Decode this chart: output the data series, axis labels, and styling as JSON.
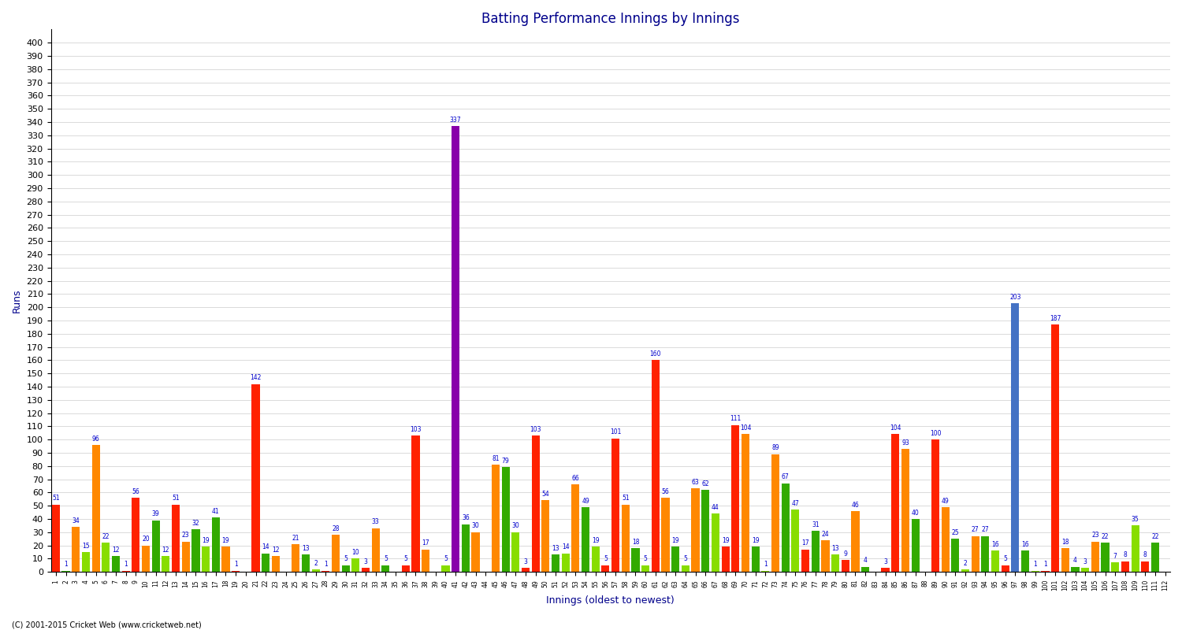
{
  "title": "Batting Performance Innings by Innings",
  "xlabel": "Innings (oldest to newest)",
  "ylabel": "Runs",
  "footer": "(C) 2001-2015 Cricket Web (www.cricketweb.net)",
  "ylim": [
    0,
    410
  ],
  "yticks": [
    0,
    10,
    20,
    30,
    40,
    50,
    60,
    70,
    80,
    90,
    100,
    110,
    120,
    130,
    140,
    150,
    160,
    170,
    180,
    190,
    200,
    210,
    220,
    230,
    240,
    250,
    260,
    270,
    280,
    290,
    300,
    310,
    320,
    330,
    340,
    350,
    360,
    370,
    380,
    390,
    400
  ],
  "bar_width": 0.8,
  "innings_data": [
    {
      "x": 1,
      "val": 51,
      "color": "#ff2200"
    },
    {
      "x": 2,
      "val": 1,
      "color": "#33aa00"
    },
    {
      "x": 3,
      "val": 34,
      "color": "#ff8800"
    },
    {
      "x": 4,
      "val": 15,
      "color": "#88dd00"
    },
    {
      "x": 5,
      "val": 96,
      "color": "#ff8800"
    },
    {
      "x": 6,
      "val": 22,
      "color": "#88dd00"
    },
    {
      "x": 7,
      "val": 12,
      "color": "#33aa00"
    },
    {
      "x": 8,
      "val": 1,
      "color": "#ff2200"
    },
    {
      "x": 9,
      "val": 56,
      "color": "#ff2200"
    },
    {
      "x": 10,
      "val": 20,
      "color": "#ff8800"
    },
    {
      "x": 11,
      "val": 39,
      "color": "#33aa00"
    },
    {
      "x": 12,
      "val": 12,
      "color": "#88dd00"
    },
    {
      "x": 13,
      "val": 51,
      "color": "#ff2200"
    },
    {
      "x": 14,
      "val": 23,
      "color": "#ff8800"
    },
    {
      "x": 15,
      "val": 32,
      "color": "#33aa00"
    },
    {
      "x": 16,
      "val": 19,
      "color": "#88dd00"
    },
    {
      "x": 17,
      "val": 41,
      "color": "#33aa00"
    },
    {
      "x": 18,
      "val": 19,
      "color": "#ff8800"
    },
    {
      "x": 19,
      "val": 1,
      "color": "#ff2200"
    },
    {
      "x": 20,
      "val": 0,
      "color": "#88dd00"
    },
    {
      "x": 21,
      "val": 142,
      "color": "#ff2200"
    },
    {
      "x": 22,
      "val": 14,
      "color": "#33aa00"
    },
    {
      "x": 23,
      "val": 12,
      "color": "#ff8800"
    },
    {
      "x": 24,
      "val": 0,
      "color": "#88dd00"
    },
    {
      "x": 25,
      "val": 21,
      "color": "#ff8800"
    },
    {
      "x": 26,
      "val": 13,
      "color": "#33aa00"
    },
    {
      "x": 27,
      "val": 2,
      "color": "#88dd00"
    },
    {
      "x": 28,
      "val": 1,
      "color": "#ff2200"
    },
    {
      "x": 29,
      "val": 28,
      "color": "#ff8800"
    },
    {
      "x": 30,
      "val": 5,
      "color": "#33aa00"
    },
    {
      "x": 31,
      "val": 10,
      "color": "#88dd00"
    },
    {
      "x": 32,
      "val": 3,
      "color": "#ff2200"
    },
    {
      "x": 33,
      "val": 33,
      "color": "#ff8800"
    },
    {
      "x": 34,
      "val": 5,
      "color": "#33aa00"
    },
    {
      "x": 35,
      "val": 0,
      "color": "#88dd00"
    },
    {
      "x": 36,
      "val": 5,
      "color": "#ff2200"
    },
    {
      "x": 37,
      "val": 103,
      "color": "#ff2200"
    },
    {
      "x": 38,
      "val": 17,
      "color": "#ff8800"
    },
    {
      "x": 39,
      "val": 0,
      "color": "#33aa00"
    },
    {
      "x": 40,
      "val": 5,
      "color": "#88dd00"
    },
    {
      "x": 41,
      "val": 337,
      "color": "#8800aa"
    },
    {
      "x": 42,
      "val": 36,
      "color": "#33aa00"
    },
    {
      "x": 43,
      "val": 30,
      "color": "#ff8800"
    },
    {
      "x": 44,
      "val": 0,
      "color": "#88dd00"
    },
    {
      "x": 45,
      "val": 81,
      "color": "#ff8800"
    },
    {
      "x": 46,
      "val": 79,
      "color": "#33aa00"
    },
    {
      "x": 47,
      "val": 30,
      "color": "#88dd00"
    },
    {
      "x": 48,
      "val": 3,
      "color": "#ff2200"
    },
    {
      "x": 49,
      "val": 103,
      "color": "#ff2200"
    },
    {
      "x": 50,
      "val": 54,
      "color": "#ff8800"
    },
    {
      "x": 51,
      "val": 13,
      "color": "#33aa00"
    },
    {
      "x": 52,
      "val": 14,
      "color": "#88dd00"
    },
    {
      "x": 53,
      "val": 66,
      "color": "#ff8800"
    },
    {
      "x": 54,
      "val": 49,
      "color": "#33aa00"
    },
    {
      "x": 55,
      "val": 19,
      "color": "#88dd00"
    },
    {
      "x": 56,
      "val": 5,
      "color": "#ff2200"
    },
    {
      "x": 57,
      "val": 101,
      "color": "#ff2200"
    },
    {
      "x": 58,
      "val": 51,
      "color": "#ff8800"
    },
    {
      "x": 59,
      "val": 18,
      "color": "#33aa00"
    },
    {
      "x": 60,
      "val": 5,
      "color": "#88dd00"
    },
    {
      "x": 61,
      "val": 160,
      "color": "#ff2200"
    },
    {
      "x": 62,
      "val": 56,
      "color": "#ff8800"
    },
    {
      "x": 63,
      "val": 19,
      "color": "#33aa00"
    },
    {
      "x": 64,
      "val": 5,
      "color": "#88dd00"
    },
    {
      "x": 65,
      "val": 63,
      "color": "#ff8800"
    },
    {
      "x": 66,
      "val": 62,
      "color": "#33aa00"
    },
    {
      "x": 67,
      "val": 44,
      "color": "#88dd00"
    },
    {
      "x": 68,
      "val": 19,
      "color": "#ff2200"
    },
    {
      "x": 69,
      "val": 111,
      "color": "#ff2200"
    },
    {
      "x": 70,
      "val": 104,
      "color": "#ff8800"
    },
    {
      "x": 71,
      "val": 19,
      "color": "#33aa00"
    },
    {
      "x": 72,
      "val": 1,
      "color": "#88dd00"
    },
    {
      "x": 73,
      "val": 89,
      "color": "#ff8800"
    },
    {
      "x": 74,
      "val": 67,
      "color": "#33aa00"
    },
    {
      "x": 75,
      "val": 47,
      "color": "#88dd00"
    },
    {
      "x": 76,
      "val": 17,
      "color": "#ff2200"
    },
    {
      "x": 77,
      "val": 31,
      "color": "#33aa00"
    },
    {
      "x": 78,
      "val": 24,
      "color": "#ff8800"
    },
    {
      "x": 79,
      "val": 13,
      "color": "#88dd00"
    },
    {
      "x": 80,
      "val": 9,
      "color": "#ff2200"
    },
    {
      "x": 81,
      "val": 46,
      "color": "#ff8800"
    },
    {
      "x": 82,
      "val": 4,
      "color": "#33aa00"
    },
    {
      "x": 83,
      "val": 0,
      "color": "#88dd00"
    },
    {
      "x": 84,
      "val": 3,
      "color": "#ff2200"
    },
    {
      "x": 85,
      "val": 104,
      "color": "#ff2200"
    },
    {
      "x": 86,
      "val": 93,
      "color": "#ff8800"
    },
    {
      "x": 87,
      "val": 40,
      "color": "#33aa00"
    },
    {
      "x": 88,
      "val": 0,
      "color": "#88dd00"
    },
    {
      "x": 89,
      "val": 100,
      "color": "#ff2200"
    },
    {
      "x": 90,
      "val": 49,
      "color": "#ff8800"
    },
    {
      "x": 91,
      "val": 25,
      "color": "#33aa00"
    },
    {
      "x": 92,
      "val": 2,
      "color": "#88dd00"
    },
    {
      "x": 93,
      "val": 27,
      "color": "#ff8800"
    },
    {
      "x": 94,
      "val": 27,
      "color": "#33aa00"
    },
    {
      "x": 95,
      "val": 16,
      "color": "#88dd00"
    },
    {
      "x": 96,
      "val": 5,
      "color": "#ff2200"
    },
    {
      "x": 97,
      "val": 203,
      "color": "#4472c4"
    },
    {
      "x": 98,
      "val": 16,
      "color": "#33aa00"
    },
    {
      "x": 99,
      "val": 1,
      "color": "#88dd00"
    },
    {
      "x": 100,
      "val": 1,
      "color": "#ff2200"
    },
    {
      "x": 101,
      "val": 187,
      "color": "#ff2200"
    },
    {
      "x": 102,
      "val": 18,
      "color": "#ff8800"
    },
    {
      "x": 103,
      "val": 4,
      "color": "#33aa00"
    },
    {
      "x": 104,
      "val": 3,
      "color": "#88dd00"
    },
    {
      "x": 105,
      "val": 23,
      "color": "#ff8800"
    },
    {
      "x": 106,
      "val": 22,
      "color": "#33aa00"
    },
    {
      "x": 107,
      "val": 7,
      "color": "#88dd00"
    },
    {
      "x": 108,
      "val": 8,
      "color": "#ff2200"
    },
    {
      "x": 109,
      "val": 35,
      "color": "#88dd00"
    },
    {
      "x": 110,
      "val": 8,
      "color": "#ff2200"
    },
    {
      "x": 111,
      "val": 22,
      "color": "#33aa00"
    },
    {
      "x": 112,
      "val": 0,
      "color": "#ff8800"
    }
  ],
  "xtick_labels": {
    "1": "1",
    "5": "5",
    "9": "9",
    "13": "13",
    "17": "17",
    "21": "21",
    "25": "25",
    "29": "29",
    "33": "33",
    "37": "37",
    "41": "41",
    "45": "45",
    "49": "49",
    "53": "53",
    "57": "57",
    "61": "61",
    "65": "65",
    "69": "69",
    "73": "73",
    "77": "77",
    "81": "81",
    "85": "85",
    "89": "89",
    "93": "93",
    "97": "97",
    "101": "101",
    "105": "105",
    "109": "109"
  }
}
